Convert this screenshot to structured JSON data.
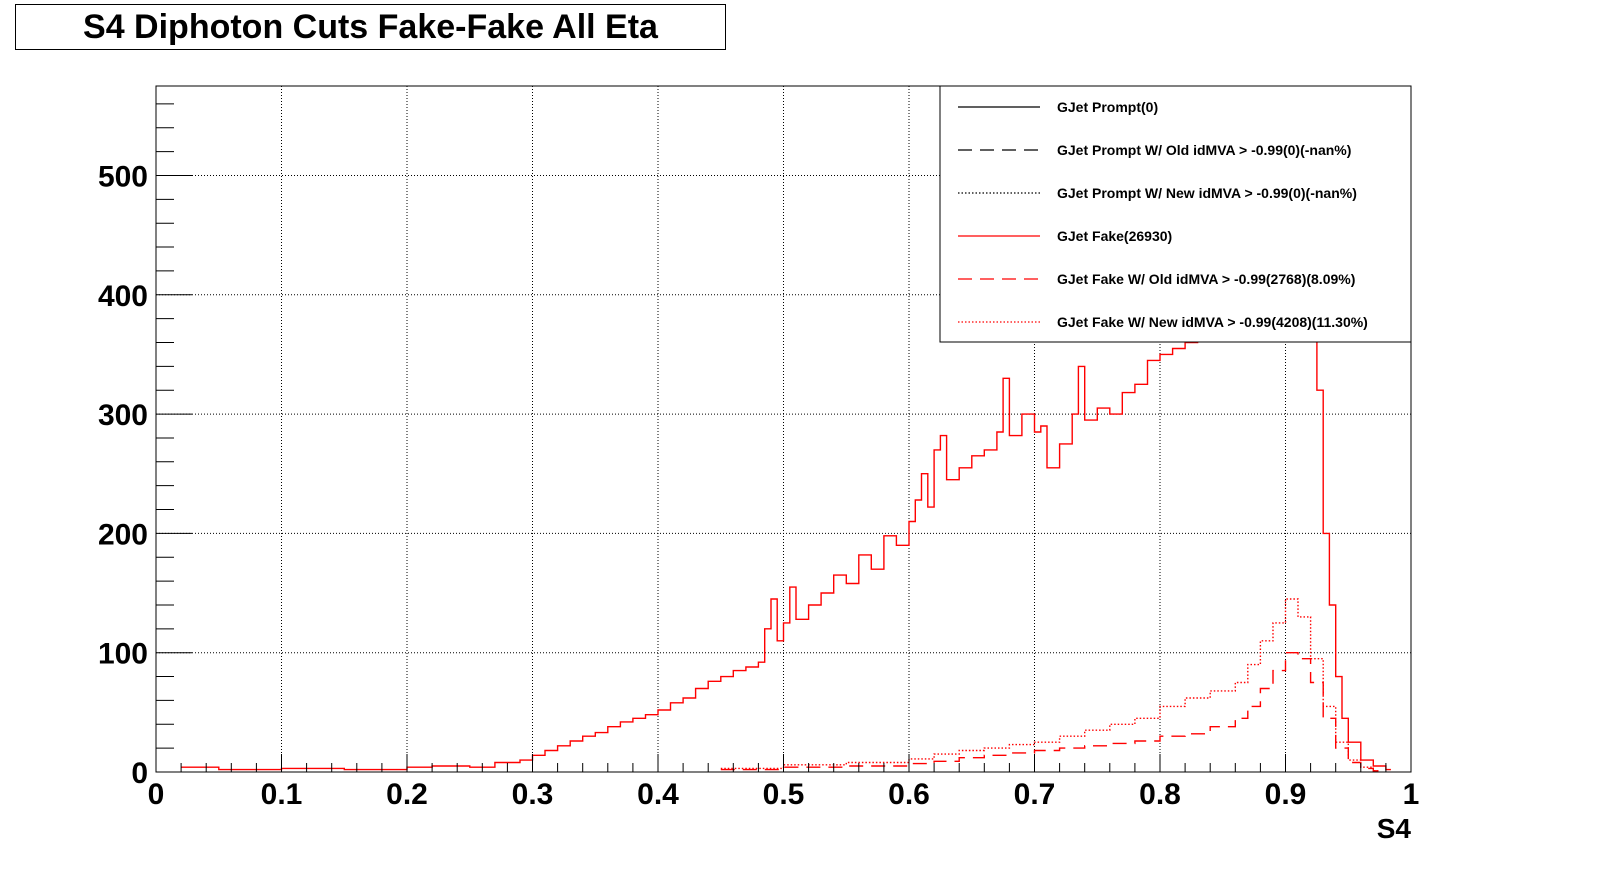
{
  "chart_data": {
    "type": "line",
    "title": "S4 Diphoton Cuts Fake-Fake All Eta",
    "xlabel": "S4",
    "ylabel": "",
    "xlim": [
      0,
      1
    ],
    "ylim": [
      0,
      575
    ],
    "grid": true,
    "legend_position": "top-right",
    "x_ticks": [
      0,
      0.1,
      0.2,
      0.3,
      0.4,
      0.5,
      0.6,
      0.7,
      0.8,
      0.9,
      1
    ],
    "x_tick_labels": [
      "0",
      "0.1",
      "0.2",
      "0.3",
      "0.4",
      "0.5",
      "0.6",
      "0.7",
      "0.8",
      "0.9",
      "1"
    ],
    "y_ticks": [
      0,
      100,
      200,
      300,
      400,
      500
    ],
    "y_tick_labels": [
      "0",
      "100",
      "200",
      "300",
      "400",
      "500"
    ],
    "series": [
      {
        "name": "GJet Prompt(0)",
        "color": "#000000",
        "style": "solid",
        "x": [],
        "values": []
      },
      {
        "name": "GJet Prompt W/ Old idMVA > -0.99(0)(-nan%)",
        "color": "#000000",
        "style": "dashed",
        "x": [],
        "values": []
      },
      {
        "name": "GJet Prompt W/ New idMVA > -0.99(0)(-nan%)",
        "color": "#000000",
        "style": "dotted",
        "x": [],
        "values": []
      },
      {
        "name": "GJet Fake(26930)",
        "color": "#ff0000",
        "style": "solid",
        "x": [
          0.02,
          0.05,
          0.08,
          0.1,
          0.12,
          0.15,
          0.18,
          0.2,
          0.22,
          0.25,
          0.27,
          0.29,
          0.3,
          0.31,
          0.32,
          0.33,
          0.34,
          0.35,
          0.36,
          0.37,
          0.38,
          0.39,
          0.4,
          0.41,
          0.42,
          0.43,
          0.44,
          0.45,
          0.46,
          0.47,
          0.48,
          0.485,
          0.49,
          0.495,
          0.5,
          0.505,
          0.51,
          0.52,
          0.53,
          0.54,
          0.55,
          0.56,
          0.57,
          0.58,
          0.59,
          0.6,
          0.605,
          0.61,
          0.615,
          0.62,
          0.625,
          0.63,
          0.64,
          0.65,
          0.66,
          0.67,
          0.675,
          0.68,
          0.69,
          0.7,
          0.705,
          0.71,
          0.72,
          0.73,
          0.735,
          0.74,
          0.75,
          0.76,
          0.77,
          0.78,
          0.79,
          0.8,
          0.81,
          0.82,
          0.83,
          0.84,
          0.85,
          0.86,
          0.87,
          0.88,
          0.89,
          0.9,
          0.905,
          0.91,
          0.915,
          0.92,
          0.925,
          0.93,
          0.935,
          0.94,
          0.945,
          0.95,
          0.96,
          0.97,
          0.98
        ],
        "values": [
          4,
          2,
          2,
          3,
          3,
          2,
          2,
          4,
          5,
          4,
          8,
          10,
          14,
          18,
          22,
          26,
          30,
          33,
          38,
          42,
          45,
          48,
          52,
          58,
          62,
          70,
          76,
          80,
          85,
          88,
          92,
          120,
          145,
          110,
          125,
          155,
          128,
          140,
          150,
          165,
          158,
          182,
          170,
          198,
          190,
          210,
          228,
          250,
          222,
          270,
          282,
          245,
          255,
          265,
          270,
          285,
          330,
          282,
          300,
          285,
          290,
          255,
          275,
          300,
          340,
          295,
          305,
          300,
          318,
          325,
          345,
          350,
          355,
          360,
          368,
          375,
          372,
          380,
          388,
          392,
          388,
          370,
          410,
          440,
          470,
          480,
          320,
          200,
          140,
          80,
          45,
          25,
          10,
          5,
          2
        ]
      },
      {
        "name": "GJet Fake W/ Old idMVA > -0.99(2768)(8.09%)",
        "color": "#ff0000",
        "style": "dashed",
        "x": [
          0.45,
          0.5,
          0.55,
          0.6,
          0.62,
          0.64,
          0.66,
          0.68,
          0.7,
          0.72,
          0.74,
          0.76,
          0.78,
          0.8,
          0.82,
          0.84,
          0.86,
          0.87,
          0.88,
          0.89,
          0.9,
          0.91,
          0.92,
          0.93,
          0.94,
          0.95,
          0.96,
          0.97
        ],
        "values": [
          2,
          4,
          5,
          7,
          9,
          12,
          14,
          16,
          18,
          20,
          22,
          24,
          26,
          30,
          32,
          38,
          45,
          55,
          70,
          85,
          100,
          95,
          75,
          45,
          20,
          8,
          3,
          1
        ]
      },
      {
        "name": "GJet Fake W/ New idMVA > -0.99(4208)(11.30%)",
        "color": "#ff0000",
        "style": "dotted",
        "x": [
          0.45,
          0.5,
          0.55,
          0.6,
          0.62,
          0.64,
          0.66,
          0.68,
          0.7,
          0.72,
          0.74,
          0.76,
          0.78,
          0.8,
          0.82,
          0.84,
          0.86,
          0.87,
          0.88,
          0.89,
          0.9,
          0.91,
          0.92,
          0.93,
          0.94,
          0.95,
          0.96,
          0.97
        ],
        "values": [
          3,
          6,
          8,
          11,
          15,
          18,
          20,
          23,
          25,
          30,
          35,
          40,
          45,
          55,
          62,
          68,
          75,
          90,
          110,
          125,
          145,
          130,
          95,
          55,
          25,
          10,
          4,
          1
        ]
      }
    ]
  }
}
